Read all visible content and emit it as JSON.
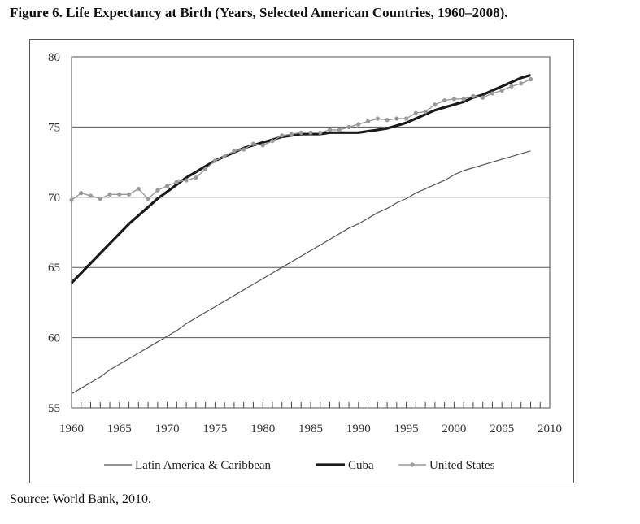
{
  "figure": {
    "title": "Figure 6. Life Expectancy at Birth (Years, Selected American Countries, 1960–2008).",
    "source": "Source: World Bank, 2010."
  },
  "chart_data": {
    "type": "line",
    "title": "",
    "xlabel": "",
    "ylabel": "",
    "xlim": [
      1960,
      2010
    ],
    "ylim": [
      55,
      80
    ],
    "x_ticks": [
      1960,
      1965,
      1970,
      1975,
      1980,
      1985,
      1990,
      1995,
      2000,
      2005,
      2010
    ],
    "y_ticks": [
      55,
      60,
      65,
      70,
      75,
      80
    ],
    "grid": "horizontal",
    "legend_position": "bottom",
    "x": [
      1960,
      1961,
      1962,
      1963,
      1964,
      1965,
      1966,
      1967,
      1968,
      1969,
      1970,
      1971,
      1972,
      1973,
      1974,
      1975,
      1976,
      1977,
      1978,
      1979,
      1980,
      1981,
      1982,
      1983,
      1984,
      1985,
      1986,
      1987,
      1988,
      1989,
      1990,
      1991,
      1992,
      1993,
      1994,
      1995,
      1996,
      1997,
      1998,
      1999,
      2000,
      2001,
      2002,
      2003,
      2004,
      2005,
      2006,
      2007,
      2008
    ],
    "series": [
      {
        "name": "Latin America & Caribbean",
        "color": "#555555",
        "style": "thin",
        "values": [
          56.0,
          56.4,
          56.8,
          57.2,
          57.7,
          58.1,
          58.5,
          58.9,
          59.3,
          59.7,
          60.1,
          60.5,
          61.0,
          61.4,
          61.8,
          62.2,
          62.6,
          63.0,
          63.4,
          63.8,
          64.2,
          64.6,
          65.0,
          65.4,
          65.8,
          66.2,
          66.6,
          67.0,
          67.4,
          67.8,
          68.1,
          68.5,
          68.9,
          69.2,
          69.6,
          69.9,
          70.3,
          70.6,
          70.9,
          71.2,
          71.6,
          71.9,
          72.1,
          72.3,
          72.5,
          72.7,
          72.9,
          73.1,
          73.3
        ]
      },
      {
        "name": "Cuba",
        "color": "#1a1a1a",
        "style": "thick",
        "values": [
          63.9,
          64.6,
          65.3,
          66.0,
          66.7,
          67.4,
          68.1,
          68.7,
          69.3,
          69.9,
          70.4,
          70.9,
          71.4,
          71.8,
          72.2,
          72.6,
          72.9,
          73.2,
          73.5,
          73.7,
          73.9,
          74.1,
          74.3,
          74.4,
          74.5,
          74.5,
          74.5,
          74.6,
          74.6,
          74.6,
          74.6,
          74.7,
          74.8,
          74.9,
          75.1,
          75.3,
          75.6,
          75.9,
          76.2,
          76.4,
          76.6,
          76.8,
          77.1,
          77.3,
          77.6,
          77.9,
          78.2,
          78.5,
          78.7
        ]
      },
      {
        "name": "United States",
        "color": "#9a9a9a",
        "style": "markers",
        "values": [
          69.8,
          70.3,
          70.1,
          69.9,
          70.2,
          70.2,
          70.2,
          70.6,
          69.9,
          70.5,
          70.8,
          71.1,
          71.2,
          71.4,
          72.0,
          72.6,
          72.9,
          73.3,
          73.4,
          73.8,
          73.7,
          74.0,
          74.4,
          74.5,
          74.6,
          74.6,
          74.6,
          74.8,
          74.8,
          75.0,
          75.2,
          75.4,
          75.6,
          75.5,
          75.6,
          75.6,
          76.0,
          76.1,
          76.6,
          76.9,
          77.0,
          77.0,
          77.2,
          77.1,
          77.4,
          77.6,
          77.9,
          78.1,
          78.4
        ]
      }
    ]
  }
}
